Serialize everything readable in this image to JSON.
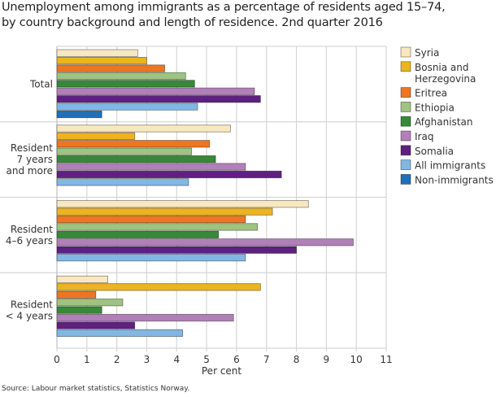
{
  "chart_data": {
    "type": "bar",
    "orientation": "horizontal",
    "title": "Unemployment among immigrants as a percentage of residents aged 15–74, by country background and length of residence. 2nd quarter 2016",
    "title_lines": [
      "Unemployment among immigrants as a percentage of residents aged 15–74,",
      "by country background and length of residence. 2nd quarter 2016"
    ],
    "xlabel": "Per cent",
    "ylabel": "",
    "xlim": [
      0,
      11
    ],
    "xticks": [
      "0",
      "1",
      "2",
      "3",
      "4",
      "5",
      "6",
      "7",
      "8",
      "9",
      "10",
      "11"
    ],
    "grid": true,
    "legend_position": "right",
    "categories": [
      {
        "label": "Total",
        "lines": [
          "Total"
        ]
      },
      {
        "label": "Resident 7 years and more",
        "lines": [
          "Resident",
          "7 years",
          "and more"
        ]
      },
      {
        "label": "Resident 4–6 years",
        "lines": [
          "Resident",
          "4–6 years"
        ]
      },
      {
        "label": "Resident < 4 years",
        "lines": [
          "Resident",
          "< 4 years"
        ]
      }
    ],
    "series": [
      {
        "name": "Syria",
        "legend_lines": [
          "Syria"
        ],
        "color": "#f8e8c0",
        "values": [
          2.7,
          5.8,
          8.4,
          1.7
        ]
      },
      {
        "name": "Bosnia and Herzegovina",
        "legend_lines": [
          "Bosnia and",
          "Herzegovina"
        ],
        "color": "#ebb420",
        "values": [
          3.0,
          2.6,
          7.2,
          6.8
        ]
      },
      {
        "name": "Eritrea",
        "legend_lines": [
          "Eritrea"
        ],
        "color": "#ec7624",
        "values": [
          3.6,
          5.1,
          6.3,
          1.3
        ]
      },
      {
        "name": "Ethiopia",
        "legend_lines": [
          "Ethiopia"
        ],
        "color": "#9fc382",
        "values": [
          4.3,
          4.5,
          6.7,
          2.2
        ]
      },
      {
        "name": "Afghanistan",
        "legend_lines": [
          "Afghanistan"
        ],
        "color": "#378937",
        "values": [
          4.6,
          5.3,
          5.4,
          1.5
        ]
      },
      {
        "name": "Iraq",
        "legend_lines": [
          "Iraq"
        ],
        "color": "#b180b8",
        "values": [
          6.6,
          6.3,
          9.9,
          5.9
        ]
      },
      {
        "name": "Somalia",
        "legend_lines": [
          "Somalia"
        ],
        "color": "#5e2180",
        "values": [
          6.8,
          7.5,
          8.0,
          2.6
        ]
      },
      {
        "name": "All immigrants",
        "legend_lines": [
          "All immigrants"
        ],
        "color": "#82b7e4",
        "values": [
          4.7,
          4.4,
          6.3,
          4.2
        ]
      },
      {
        "name": "Non-immigrants",
        "legend_lines": [
          "Non-immigrants"
        ],
        "color": "#1f70b8",
        "values": [
          1.5,
          null,
          null,
          null
        ]
      }
    ]
  },
  "source": "Source: Labour market statistics, Statistics Norway."
}
